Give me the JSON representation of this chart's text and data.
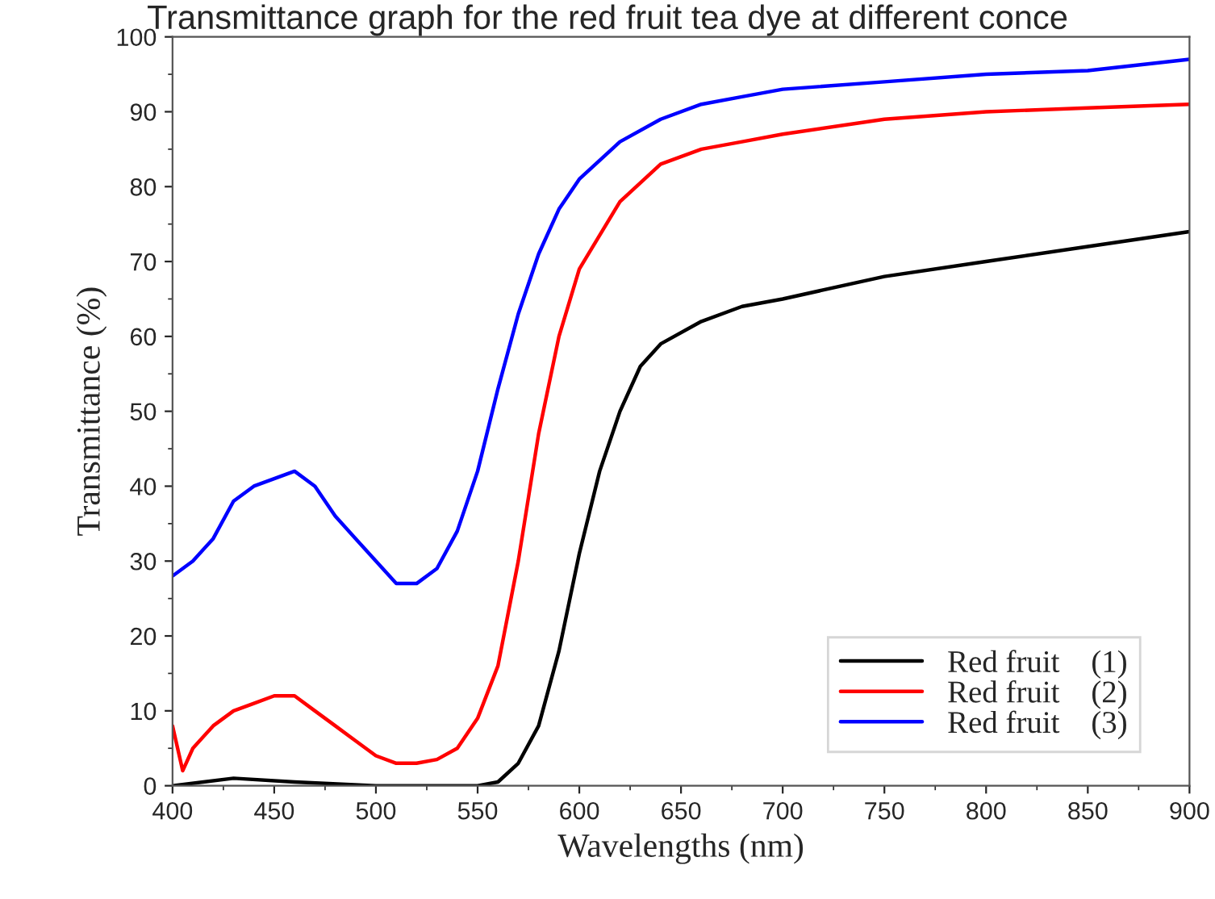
{
  "chart_data": {
    "type": "line",
    "title": "Transmittance graph for the red fruit tea dye at different conce",
    "xlabel": "Wavelengths (nm)",
    "ylabel": "Transmittance (%)",
    "xlim": [
      400,
      900
    ],
    "xticks": [
      400,
      450,
      500,
      550,
      600,
      650,
      700,
      750,
      800,
      850,
      900
    ],
    "ylim": [
      0,
      100
    ],
    "yticks": [
      0,
      10,
      20,
      30,
      40,
      50,
      60,
      70,
      80,
      90,
      100
    ],
    "grid": false,
    "legend": "bottom right",
    "line_style": "solid",
    "marker": "none",
    "series": [
      {
        "name": "Red fruit    (1)",
        "color": "#000000",
        "x": [
          400,
          430,
          460,
          500,
          550,
          560,
          570,
          580,
          590,
          600,
          610,
          620,
          630,
          640,
          660,
          680,
          700,
          750,
          800,
          850,
          900
        ],
        "values": [
          0,
          1,
          0.5,
          0,
          0,
          0.5,
          3,
          8,
          18,
          31,
          42,
          50,
          56,
          59,
          62,
          64,
          65,
          68,
          70,
          72,
          74
        ]
      },
      {
        "name": "Red fruit    (2)",
        "color": "#ff0000",
        "x": [
          400,
          405,
          410,
          420,
          430,
          440,
          450,
          460,
          470,
          480,
          490,
          500,
          510,
          520,
          530,
          540,
          550,
          560,
          570,
          580,
          590,
          600,
          620,
          640,
          660,
          680,
          700,
          750,
          800,
          850,
          900
        ],
        "values": [
          8,
          2,
          5,
          8,
          10,
          11,
          12,
          12,
          10,
          8,
          6,
          4,
          3,
          3,
          3.5,
          5,
          9,
          16,
          30,
          47,
          60,
          69,
          78,
          83,
          85,
          86,
          87,
          89,
          90,
          90.5,
          91
        ]
      },
      {
        "name": "Red fruit    (3)",
        "color": "#0000ff",
        "x": [
          400,
          410,
          420,
          430,
          440,
          450,
          460,
          470,
          480,
          490,
          500,
          510,
          520,
          530,
          540,
          550,
          560,
          570,
          580,
          590,
          600,
          620,
          640,
          660,
          680,
          700,
          750,
          800,
          850,
          900
        ],
        "values": [
          28,
          30,
          33,
          38,
          40,
          41,
          42,
          40,
          36,
          33,
          30,
          27,
          27,
          29,
          34,
          42,
          53,
          63,
          71,
          77,
          81,
          86,
          89,
          91,
          92,
          93,
          94,
          95,
          95.5,
          97
        ]
      }
    ]
  }
}
